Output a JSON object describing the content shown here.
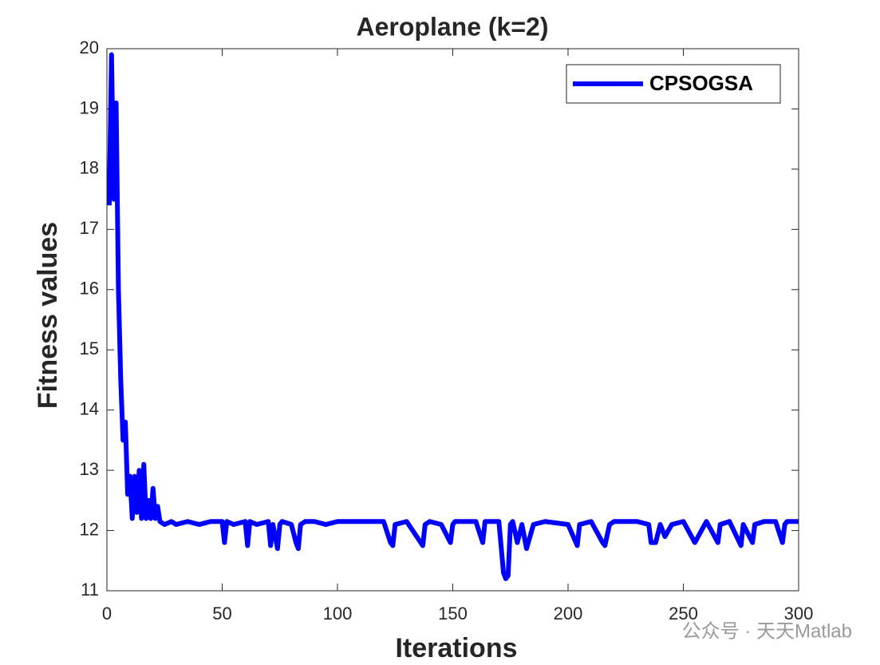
{
  "chart_data": {
    "type": "line",
    "title": "Aeroplane (k=2)",
    "xlabel": "Iterations",
    "ylabel": "Fitness values",
    "x": [
      1,
      2,
      3,
      4,
      5,
      6,
      7,
      8,
      9,
      10,
      11,
      12,
      13,
      14,
      15,
      16,
      17,
      18,
      19,
      20,
      21,
      22,
      23,
      25,
      28,
      30,
      35,
      40,
      45,
      50,
      51,
      52,
      55,
      60,
      61,
      62,
      65,
      70,
      71,
      72,
      74,
      75,
      76,
      80,
      82,
      83,
      84,
      86,
      90,
      95,
      100,
      110,
      120,
      123,
      124,
      125,
      130,
      137,
      138,
      140,
      145,
      149,
      150,
      151,
      155,
      160,
      163,
      164,
      170,
      172,
      173,
      174,
      175,
      176,
      178,
      180,
      182,
      185,
      190,
      200,
      204,
      205,
      210,
      215,
      216,
      218,
      220,
      225,
      230,
      235,
      236,
      238,
      240,
      242,
      245,
      250,
      255,
      260,
      265,
      266,
      270,
      275,
      276,
      280,
      281,
      285,
      290,
      293,
      294,
      295,
      300
    ],
    "series": [
      {
        "name": "CPSOGSA",
        "color": "#0000ff",
        "values": [
          17.4,
          19.9,
          17.5,
          19.1,
          16.0,
          14.5,
          13.5,
          13.8,
          12.6,
          12.9,
          12.2,
          12.9,
          12.3,
          13.0,
          12.2,
          13.1,
          12.2,
          12.5,
          12.2,
          12.7,
          12.2,
          12.4,
          12.15,
          12.1,
          12.15,
          12.1,
          12.15,
          12.1,
          12.15,
          12.15,
          11.8,
          12.15,
          12.1,
          12.15,
          11.75,
          12.15,
          12.1,
          12.15,
          11.75,
          12.1,
          11.7,
          12.1,
          12.15,
          12.1,
          11.8,
          11.7,
          12.1,
          12.15,
          12.15,
          12.1,
          12.15,
          12.15,
          12.15,
          11.8,
          11.75,
          12.1,
          12.15,
          11.75,
          12.1,
          12.15,
          12.1,
          11.8,
          12.1,
          12.15,
          12.15,
          12.15,
          11.8,
          12.15,
          12.15,
          11.3,
          11.2,
          11.25,
          12.1,
          12.15,
          11.8,
          12.1,
          11.7,
          12.1,
          12.15,
          12.1,
          11.75,
          12.1,
          12.15,
          11.8,
          11.75,
          12.1,
          12.15,
          12.15,
          12.15,
          12.1,
          11.8,
          11.8,
          12.1,
          11.9,
          12.1,
          12.15,
          11.8,
          12.15,
          11.8,
          12.1,
          12.15,
          11.75,
          12.1,
          11.8,
          12.1,
          12.15,
          12.15,
          11.8,
          12.1,
          12.15,
          12.15
        ]
      }
    ],
    "xlim": [
      0,
      300
    ],
    "xticks": [
      0,
      50,
      100,
      150,
      200,
      250,
      300
    ],
    "ylim": [
      11,
      20
    ],
    "yticks": [
      11,
      12,
      13,
      14,
      15,
      16,
      17,
      18,
      19,
      20
    ],
    "legend": "upper right",
    "watermark": "公众号 · 天天Matlab"
  }
}
